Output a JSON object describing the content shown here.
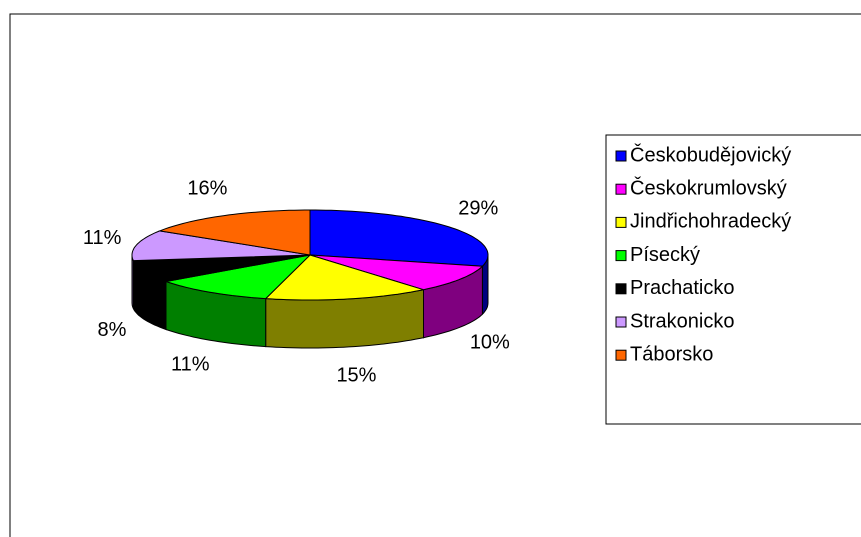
{
  "chart_data": {
    "type": "pie3d",
    "categories": [
      "Českobudějovický",
      "Českokrumlovský",
      "Jindřichohradecký",
      "Písecký",
      "Prachaticko",
      "Strakonicko",
      "Táborsko"
    ],
    "values": [
      29,
      10,
      15,
      11,
      8,
      11,
      16
    ],
    "value_labels": [
      "29%",
      "10%",
      "15%",
      "11%",
      "8%",
      "11%",
      "16%"
    ],
    "colors": [
      "#0000ff",
      "#ff00ff",
      "#ffff00",
      "#00ff00",
      "#000000",
      "#cc99ff",
      "#ff6600"
    ],
    "legend": "right"
  }
}
